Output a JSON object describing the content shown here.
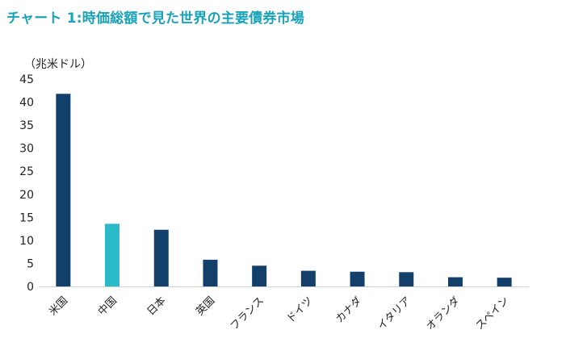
{
  "title": "チャート 1:時価総額で見た世界の主要債券市場",
  "chart_data": {
    "type": "bar",
    "unit_label": "（兆米ドル）",
    "categories": [
      "米国",
      "中国",
      "日本",
      "英国",
      "フランス",
      "ドイツ",
      "カナダ",
      "イタリア",
      "オランダ",
      "スペイン"
    ],
    "values": [
      41.8,
      13.6,
      12.3,
      5.8,
      4.5,
      3.4,
      3.2,
      3.1,
      2.0,
      1.9
    ],
    "highlight_index": 1,
    "ylim": [
      0,
      45
    ],
    "yticks": [
      0,
      5,
      10,
      15,
      20,
      25,
      30,
      35,
      40,
      45
    ],
    "grid": false,
    "colors": {
      "bar": "#13406b",
      "highlight": "#2bbac8",
      "axis": "#d0d0d0"
    }
  }
}
